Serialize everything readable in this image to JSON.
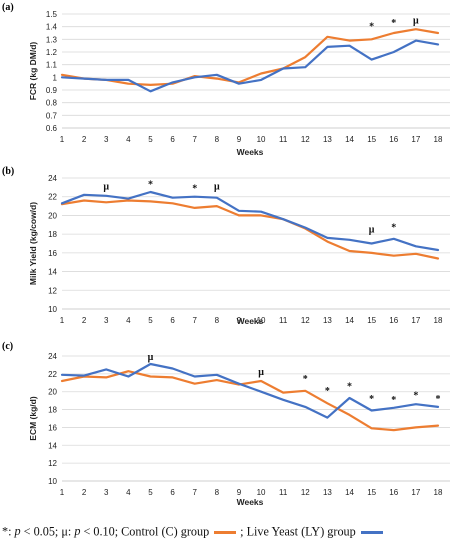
{
  "colors": {
    "control": "#ED7D31",
    "live_yeast": "#4472C4",
    "grid": "#D9D9D9",
    "axis": "#BFBFBF"
  },
  "legend": {
    "text1": "*: ",
    "p1": "p",
    "text2": " < 0.05; μ: ",
    "p2": "p",
    "text3": " < 0.10; Control (C) group",
    "text4": "; Live Yeast (LY) group"
  },
  "chart_data": [
    {
      "type": "line",
      "panel_label": "(a)",
      "ylabel": "FCR (kg DM/d)",
      "xlabel": "Weeks",
      "ylim": [
        0.6,
        1.5
      ],
      "ytick_step": 0.1,
      "ytick_labels": [
        "0.6",
        "0.7",
        "0.8",
        "0.9",
        "1",
        "1.1",
        "1.2",
        "1.3",
        "1.4",
        "1.5"
      ],
      "grid": true,
      "categories": [
        "1",
        "2",
        "3",
        "4",
        "5",
        "6",
        "7",
        "8",
        "9",
        "10",
        "11",
        "12",
        "13",
        "14",
        "15",
        "16",
        "17",
        "18"
      ],
      "series": [
        {
          "name": "Control (C)",
          "color": "#ED7D31",
          "values": [
            1.02,
            0.99,
            0.98,
            0.95,
            0.94,
            0.95,
            1.01,
            0.99,
            0.96,
            1.03,
            1.07,
            1.16,
            1.32,
            1.29,
            1.3,
            1.35,
            1.38,
            1.35
          ]
        },
        {
          "name": "Live Yeast (LY)",
          "color": "#4472C4",
          "values": [
            1.0,
            0.99,
            0.98,
            0.98,
            0.89,
            0.96,
            1.0,
            1.02,
            0.95,
            0.98,
            1.07,
            1.08,
            1.24,
            1.25,
            1.14,
            1.2,
            1.29,
            1.26
          ]
        }
      ],
      "annotations": [
        {
          "week": "15",
          "symbol": "*",
          "y": 1.4
        },
        {
          "week": "16",
          "symbol": "*",
          "y": 1.43
        },
        {
          "week": "17",
          "symbol": "μ",
          "y": 1.45
        }
      ]
    },
    {
      "type": "line",
      "panel_label": "(b)",
      "ylabel": "Milk Yield (kg/cow/d)",
      "xlabel": "Weeks",
      "ylim": [
        10,
        24
      ],
      "ytick_step": 2,
      "ytick_labels": [
        "10",
        "12",
        "14",
        "16",
        "18",
        "20",
        "22",
        "24"
      ],
      "grid": true,
      "categories": [
        "1",
        "2",
        "3",
        "4",
        "5",
        "6",
        "7",
        "8",
        "9",
        "10",
        "11",
        "12",
        "13",
        "14",
        "15",
        "16",
        "17",
        "18"
      ],
      "series": [
        {
          "name": "Control (C)",
          "color": "#ED7D31",
          "values": [
            21.2,
            21.6,
            21.4,
            21.6,
            21.5,
            21.3,
            20.8,
            21.0,
            20.0,
            20.0,
            19.6,
            18.6,
            17.2,
            16.2,
            16.0,
            15.7,
            15.9,
            15.4
          ]
        },
        {
          "name": "Live Yeast (LY)",
          "color": "#4472C4",
          "values": [
            21.3,
            22.2,
            22.1,
            21.8,
            22.5,
            21.9,
            22.0,
            21.9,
            20.5,
            20.4,
            19.6,
            18.7,
            17.6,
            17.4,
            17.0,
            17.5,
            16.7,
            16.3
          ]
        }
      ],
      "annotations": [
        {
          "week": "3",
          "symbol": "μ",
          "y": 23.1
        },
        {
          "week": "5",
          "symbol": "*",
          "y": 23.3
        },
        {
          "week": "7",
          "symbol": "*",
          "y": 22.9
        },
        {
          "week": "8",
          "symbol": "μ",
          "y": 23.1
        },
        {
          "week": "15",
          "symbol": "μ",
          "y": 18.5
        },
        {
          "week": "16",
          "symbol": "*",
          "y": 18.7
        }
      ]
    },
    {
      "type": "line",
      "panel_label": "(c)",
      "ylabel": "ECM (kg/d)",
      "xlabel": "Weeks",
      "ylim": [
        10,
        24
      ],
      "ytick_step": 2,
      "ytick_labels": [
        "10",
        "12",
        "14",
        "16",
        "18",
        "20",
        "22",
        "24"
      ],
      "grid": true,
      "categories": [
        "1",
        "2",
        "3",
        "4",
        "5",
        "6",
        "7",
        "8",
        "9",
        "10",
        "11",
        "12",
        "13",
        "14",
        "15",
        "16",
        "17",
        "18"
      ],
      "series": [
        {
          "name": "Control (C)",
          "color": "#ED7D31",
          "values": [
            21.2,
            21.7,
            21.6,
            22.3,
            21.7,
            21.6,
            20.9,
            21.3,
            20.8,
            21.2,
            19.9,
            20.1,
            18.7,
            17.4,
            15.9,
            15.7,
            16.0,
            16.2
          ]
        },
        {
          "name": "Live Yeast (LY)",
          "color": "#4472C4",
          "values": [
            21.9,
            21.8,
            22.5,
            21.7,
            23.1,
            22.6,
            21.7,
            21.9,
            20.9,
            20.0,
            19.1,
            18.3,
            17.1,
            19.3,
            17.9,
            18.2,
            18.6,
            18.3
          ]
        }
      ],
      "annotations": [
        {
          "week": "5",
          "symbol": "μ",
          "y": 23.9
        },
        {
          "week": "10",
          "symbol": "μ",
          "y": 22.2
        },
        {
          "week": "12",
          "symbol": "*",
          "y": 21.4
        },
        {
          "week": "13",
          "symbol": "*",
          "y": 20.1
        },
        {
          "week": "14",
          "symbol": "*",
          "y": 20.6
        },
        {
          "week": "15",
          "symbol": "*",
          "y": 19.2
        },
        {
          "week": "16",
          "symbol": "*",
          "y": 19.1
        },
        {
          "week": "17",
          "symbol": "*",
          "y": 19.6
        },
        {
          "week": "18",
          "symbol": "*",
          "y": 19.2
        }
      ]
    }
  ]
}
